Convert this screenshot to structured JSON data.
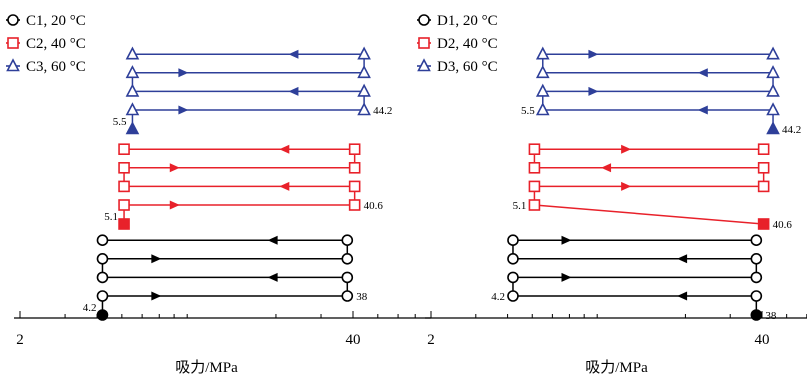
{
  "chart_data": [
    {
      "type": "line",
      "title": "",
      "xlabel": "吸力/MPa",
      "ylabel": "",
      "xscale": "log",
      "xlim": [
        1.3,
        75
      ],
      "xticks": [
        "2",
        "40"
      ],
      "legend": {
        "placement": "top-left"
      },
      "series": [
        {
          "name": "C1, 20 °C",
          "color": "#000000",
          "marker": "circle",
          "start_suction": 4.2,
          "start_label": "4.2",
          "end_label": "38",
          "path": [
            {
              "suction": 4.2,
              "marker": "filled"
            },
            {
              "suction": 4.2
            },
            {
              "suction": 38
            },
            {
              "suction": 38
            },
            {
              "suction": 4.2
            },
            {
              "suction": 4.2
            },
            {
              "suction": 38
            },
            {
              "suction": 38
            },
            {
              "suction": 4.2
            }
          ]
        },
        {
          "name": "C2, 40 °C",
          "color": "#e8212a",
          "marker": "square",
          "start_suction": 5.1,
          "start_label": "5.1",
          "end_label": "40.6",
          "path": [
            {
              "suction": 5.1,
              "marker": "filled"
            },
            {
              "suction": 5.1
            },
            {
              "suction": 40.6
            },
            {
              "suction": 40.6
            },
            {
              "suction": 5.1
            },
            {
              "suction": 5.1
            },
            {
              "suction": 40.6
            },
            {
              "suction": 40.6
            },
            {
              "suction": 5.1
            }
          ]
        },
        {
          "name": "C3, 60 °C",
          "color": "#2e3f99",
          "marker": "triangle",
          "start_suction": 5.5,
          "start_label": "5.5",
          "end_label": "44.2",
          "path": [
            {
              "suction": 5.5,
              "marker": "filled"
            },
            {
              "suction": 5.5
            },
            {
              "suction": 44.2
            },
            {
              "suction": 44.2
            },
            {
              "suction": 5.5
            },
            {
              "suction": 5.5
            },
            {
              "suction": 44.2
            },
            {
              "suction": 44.2
            },
            {
              "suction": 5.5
            }
          ]
        }
      ]
    },
    {
      "type": "line",
      "title": "",
      "xlabel": "吸力/MPa",
      "ylabel": "",
      "xscale": "log",
      "xlim": [
        1.3,
        75
      ],
      "xticks": [
        "2",
        "40"
      ],
      "legend": {
        "placement": "top-left"
      },
      "series": [
        {
          "name": "D1, 20 °C",
          "color": "#000000",
          "marker": "circle",
          "start_suction": 38,
          "start_label": "38",
          "end_label": "4.2",
          "path": [
            {
              "suction": 38,
              "marker": "filled"
            },
            {
              "suction": 38
            },
            {
              "suction": 4.2
            },
            {
              "suction": 4.2
            },
            {
              "suction": 38
            },
            {
              "suction": 38
            },
            {
              "suction": 4.2
            },
            {
              "suction": 4.2
            },
            {
              "suction": 38
            }
          ]
        },
        {
          "name": "D2, 40 °C",
          "color": "#e8212a",
          "marker": "square",
          "start_suction": 40.6,
          "start_label": "40.6",
          "end_label": "5.1",
          "path": [
            {
              "suction": 40.6,
              "marker": "filled"
            },
            {
              "suction": 5.1
            },
            {
              "suction": 5.1
            },
            {
              "suction": 40.6
            },
            {
              "suction": 40.6
            },
            {
              "suction": 5.1
            },
            {
              "suction": 5.1
            },
            {
              "suction": 40.6
            }
          ]
        },
        {
          "name": "D3, 60 °C",
          "color": "#2e3f99",
          "marker": "triangle",
          "start_suction": 44.2,
          "start_label": "44.2",
          "end_label": "5.5",
          "path": [
            {
              "suction": 44.2,
              "marker": "filled"
            },
            {
              "suction": 44.2
            },
            {
              "suction": 5.5
            },
            {
              "suction": 5.5
            },
            {
              "suction": 44.2
            },
            {
              "suction": 44.2
            },
            {
              "suction": 5.5
            },
            {
              "suction": 5.5
            },
            {
              "suction": 44.2
            }
          ]
        }
      ]
    }
  ]
}
